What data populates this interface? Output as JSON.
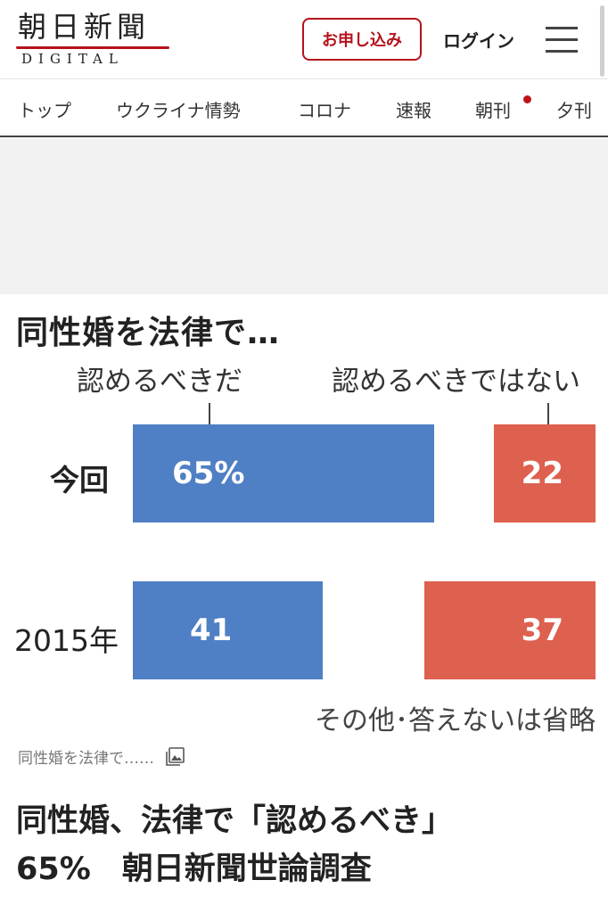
{
  "header": {
    "logo_text": "朝日新聞",
    "logo_sub": "DIGITAL",
    "apply_label": "お申し込み",
    "login_label": "ログイン",
    "brand_color": "#b5121b"
  },
  "nav": {
    "items": [
      "トップ",
      "ウクライナ情勢",
      "コロナ",
      "速報",
      "朝刊",
      "夕刊"
    ],
    "new_dot_on": "朝刊"
  },
  "chart_data": {
    "type": "bar",
    "title": "同性婚を法律で…",
    "categories": [
      "今回",
      "2015年"
    ],
    "series": [
      {
        "name": "認めるべきだ",
        "values": [
          65,
          41
        ],
        "labels": [
          "65%",
          "41"
        ],
        "color": "#4f7fc4"
      },
      {
        "name": "認めるべきではない",
        "values": [
          22,
          37
        ],
        "labels": [
          "22",
          "37"
        ],
        "color": "#de604f"
      }
    ],
    "note": "その他･答えないは省略"
  },
  "article": {
    "image_caption": "同性婚を法律で……",
    "headline_line1": "同性婚、法律で「認めるべき」",
    "headline_line2": "65%　朝日新聞世論調査"
  }
}
